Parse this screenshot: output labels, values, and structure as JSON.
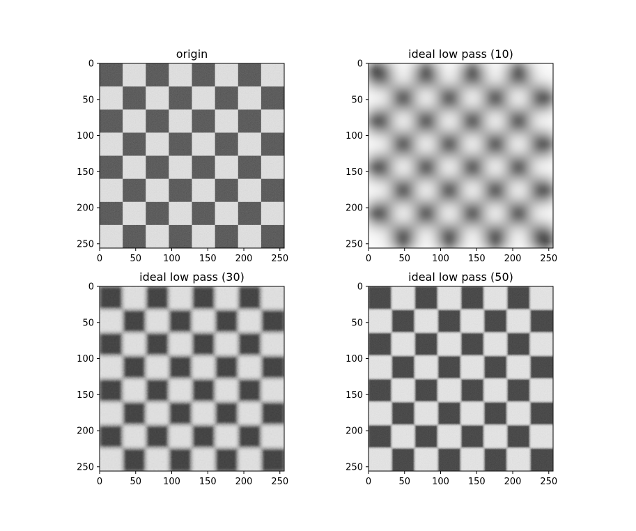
{
  "chart_data": [
    {
      "type": "heatmap",
      "title": "origin",
      "image": {
        "size": [
          256,
          256
        ],
        "pattern": "checkerboard",
        "squares_per_side": 8,
        "square_size": 32,
        "first_square": "dark",
        "filter": "none"
      },
      "xlim": [
        0,
        256
      ],
      "ylim": [
        256,
        0
      ],
      "xticks": [
        0,
        50,
        100,
        150,
        200,
        250
      ],
      "yticks": [
        0,
        50,
        100,
        150,
        200,
        250
      ],
      "colormap": "gray"
    },
    {
      "type": "heatmap",
      "title": "ideal low pass (10)",
      "image": {
        "size": [
          256,
          256
        ],
        "pattern": "checkerboard",
        "squares_per_side": 8,
        "square_size": 32,
        "first_square": "dark",
        "filter": "ideal low pass",
        "cutoff": 10
      },
      "xlim": [
        0,
        256
      ],
      "ylim": [
        256,
        0
      ],
      "xticks": [
        0,
        50,
        100,
        150,
        200,
        250
      ],
      "yticks": [
        0,
        50,
        100,
        150,
        200,
        250
      ],
      "colormap": "gray"
    },
    {
      "type": "heatmap",
      "title": "ideal low pass (30)",
      "image": {
        "size": [
          256,
          256
        ],
        "pattern": "checkerboard",
        "squares_per_side": 8,
        "square_size": 32,
        "first_square": "dark",
        "filter": "ideal low pass",
        "cutoff": 30
      },
      "xlim": [
        0,
        256
      ],
      "ylim": [
        256,
        0
      ],
      "xticks": [
        0,
        50,
        100,
        150,
        200,
        250
      ],
      "yticks": [
        0,
        50,
        100,
        150,
        200,
        250
      ],
      "colormap": "gray"
    },
    {
      "type": "heatmap",
      "title": "ideal low pass (50)",
      "image": {
        "size": [
          256,
          256
        ],
        "pattern": "checkerboard",
        "squares_per_side": 8,
        "square_size": 32,
        "first_square": "dark",
        "filter": "ideal low pass",
        "cutoff": 50
      },
      "xlim": [
        0,
        256
      ],
      "ylim": [
        256,
        0
      ],
      "xticks": [
        0,
        50,
        100,
        150,
        200,
        250
      ],
      "yticks": [
        0,
        50,
        100,
        150,
        200,
        250
      ],
      "colormap": "gray"
    }
  ]
}
